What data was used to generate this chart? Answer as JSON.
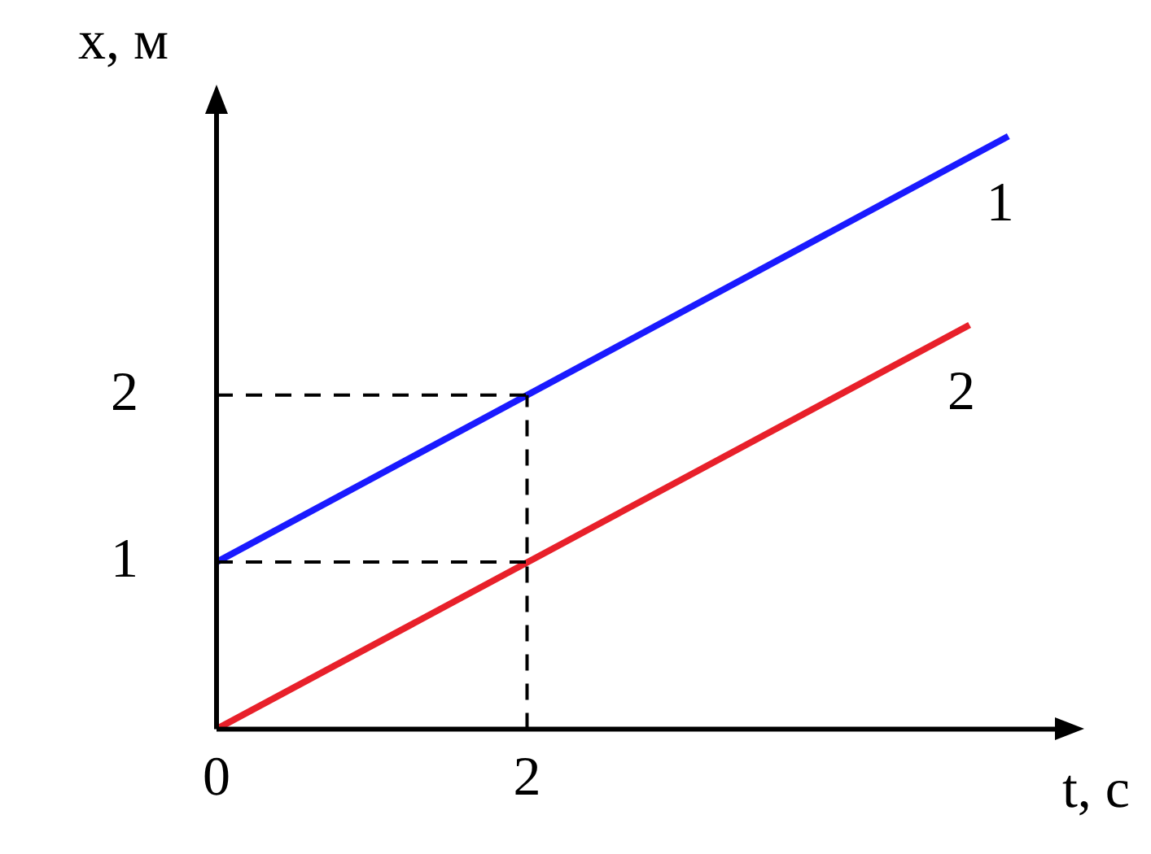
{
  "chart_data": {
    "type": "line",
    "xlabel": "t, с",
    "ylabel": "x, м",
    "series": [
      {
        "name": "1",
        "color": "#1a1aff",
        "x": [
          0,
          5.1
        ],
        "values": [
          1,
          3.55
        ]
      },
      {
        "name": "2",
        "color": "#e8202a",
        "x": [
          0,
          4.85
        ],
        "values": [
          0,
          2.42
        ]
      }
    ],
    "xlim": [
      0,
      5.4
    ],
    "ylim": [
      0,
      3.7
    ],
    "xticks": [
      0,
      2
    ],
    "yticks": [
      1,
      2
    ],
    "grid": false,
    "legend": false,
    "marker": "none",
    "line_style": "solid",
    "ref_lines": [
      {
        "axis": "y",
        "value": 2,
        "color": "#000000",
        "line_style": "dashed"
      },
      {
        "axis": "y",
        "value": 1,
        "color": "#000000",
        "line_style": "dashed"
      },
      {
        "axis": "x",
        "value": 2,
        "color": "#000000",
        "line_style": "dashed"
      }
    ]
  }
}
